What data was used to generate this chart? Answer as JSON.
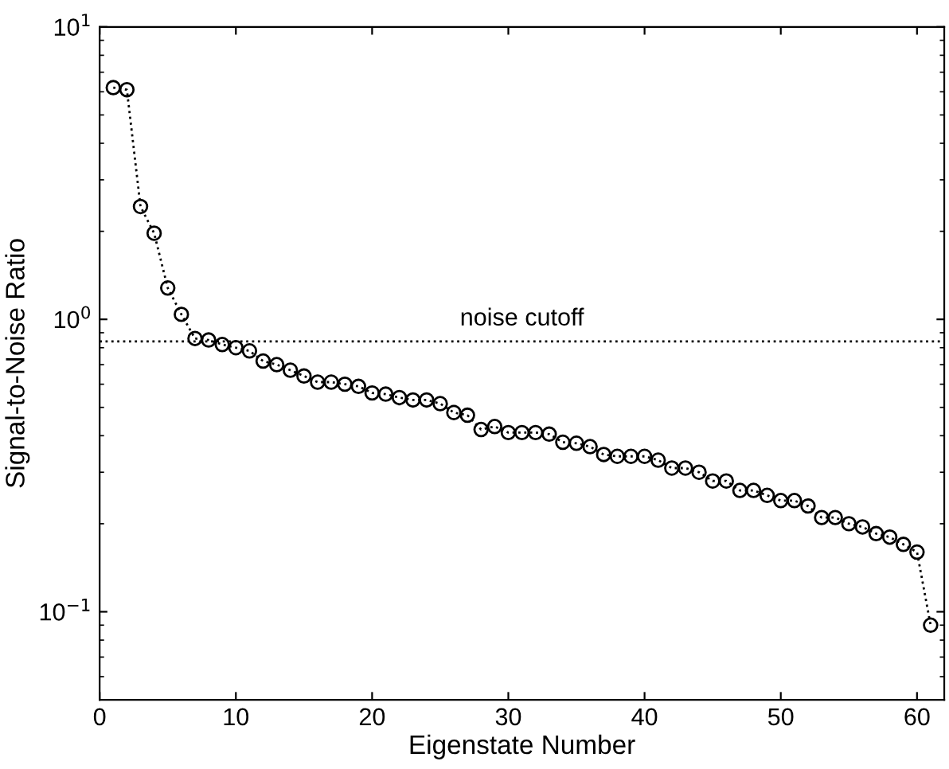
{
  "chart_data": {
    "type": "line",
    "xlabel": "Eigenstate Number",
    "ylabel": "Signal-to-Noise Ratio",
    "x": [
      1,
      2,
      3,
      4,
      5,
      6,
      7,
      8,
      9,
      10,
      11,
      12,
      13,
      14,
      15,
      16,
      17,
      18,
      19,
      20,
      21,
      22,
      23,
      24,
      25,
      26,
      27,
      28,
      29,
      30,
      31,
      32,
      33,
      34,
      35,
      36,
      37,
      38,
      39,
      40,
      41,
      42,
      43,
      44,
      45,
      46,
      47,
      48,
      49,
      50,
      51,
      52,
      53,
      54,
      55,
      56,
      57,
      58,
      59,
      60,
      61
    ],
    "series": [
      {
        "color": "#000000",
        "values": [
          6.2,
          6.1,
          2.43,
          1.97,
          1.28,
          1.04,
          0.86,
          0.85,
          0.82,
          0.8,
          0.78,
          0.72,
          0.7,
          0.67,
          0.64,
          0.61,
          0.61,
          0.6,
          0.59,
          0.56,
          0.555,
          0.54,
          0.53,
          0.53,
          0.515,
          0.48,
          0.47,
          0.42,
          0.43,
          0.41,
          0.41,
          0.41,
          0.405,
          0.38,
          0.377,
          0.367,
          0.345,
          0.34,
          0.34,
          0.34,
          0.33,
          0.31,
          0.31,
          0.3,
          0.28,
          0.28,
          0.26,
          0.26,
          0.25,
          0.24,
          0.24,
          0.23,
          0.21,
          0.21,
          0.2,
          0.195,
          0.185,
          0.18,
          0.17,
          0.16,
          0.09
        ]
      }
    ],
    "log": "y",
    "xlim": [
      0,
      62
    ],
    "xticks": [
      0,
      10,
      20,
      30,
      40,
      50,
      60
    ],
    "ylim": [
      0.05,
      10
    ],
    "yticks": [
      {
        "value": 0.1,
        "label": "10$^{−1}$"
      },
      {
        "value": 1,
        "label": "10$^{0}$"
      },
      {
        "value": 10,
        "label": "10$^{1}$"
      }
    ],
    "marker": "circle",
    "line_style": "dotted",
    "grid": false,
    "ref_lines": [
      {
        "axis": "y",
        "value": 0.84,
        "color": "#000000",
        "line_style": "dotted"
      }
    ],
    "annotations": [
      {
        "text": "noise cutoff",
        "x": 31,
        "y": 0.84
      }
    ]
  }
}
